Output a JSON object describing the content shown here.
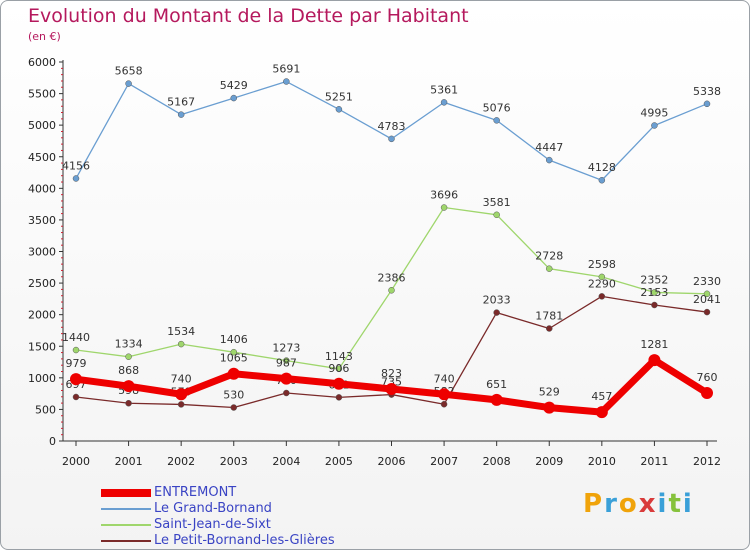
{
  "title": "Evolution du Montant de la Dette par Habitant",
  "subtitle": "(en €)",
  "brand": {
    "letters": [
      "P",
      "r",
      "o",
      "x",
      "i",
      "t",
      "i"
    ],
    "colors": [
      "#f0a30a",
      "#3aa0d8",
      "#f0a30a",
      "#d93b3b",
      "#3aa0d8",
      "#86c23c",
      "#3aa0d8"
    ]
  },
  "chart_data": {
    "type": "line",
    "x": [
      "2000",
      "2001",
      "2002",
      "2003",
      "2004",
      "2005",
      "2006",
      "2007",
      "2008",
      "2009",
      "2010",
      "2011",
      "2012"
    ],
    "ylim": [
      0,
      6000
    ],
    "yticks": [
      "0",
      "500",
      "1000",
      "1500",
      "2000",
      "2500",
      "3000",
      "3500",
      "4000",
      "4500",
      "5000",
      "5500",
      "6000"
    ],
    "grid": false,
    "legend_position": "bottom-left",
    "series": [
      {
        "name": "ENTREMONT",
        "color": "#ee0000",
        "values": [
          979,
          868,
          740,
          1065,
          987,
          906,
          823,
          740,
          651,
          529,
          457,
          1281,
          760
        ],
        "labels": [
          "979",
          "868",
          "740",
          "1065",
          "987",
          "906",
          "823",
          "740",
          "651",
          "529",
          "457",
          "1281",
          "760"
        ]
      },
      {
        "name": "Le Grand-Bornand",
        "color": "#6a9ed1",
        "values": [
          4156,
          5658,
          5167,
          5429,
          5691,
          5251,
          4783,
          5361,
          5076,
          4447,
          4128,
          4995,
          5338
        ],
        "labels": [
          "4156",
          "5658",
          "5167",
          "5429",
          "5691",
          "5251",
          "4783",
          "5361",
          "5076",
          "4447",
          "4128",
          "4995",
          "5338"
        ]
      },
      {
        "name": "Saint-Jean-de-Sixt",
        "color": "#9fd66c",
        "values": [
          1440,
          1334,
          1534,
          1406,
          1273,
          1143,
          2386,
          3696,
          3581,
          2728,
          2598,
          2352,
          2330
        ],
        "labels": [
          "1440",
          "1334",
          "1534",
          "1406",
          "1273",
          "1143",
          "2386",
          "3696",
          "3581",
          "2728",
          "2598",
          "2352",
          "2330"
        ]
      },
      {
        "name": "Le Petit-Bornand-les-Glières",
        "color": "#7a2a2a",
        "values": [
          697,
          598,
          579,
          530,
          760,
          691,
          735,
          582,
          2033,
          1781,
          2290,
          2153,
          2041
        ],
        "labels": [
          "697",
          "598",
          "579",
          "530",
          "760",
          "691",
          "735",
          "582",
          "2033",
          "1781",
          "2290",
          "2153",
          "2041"
        ]
      }
    ]
  }
}
